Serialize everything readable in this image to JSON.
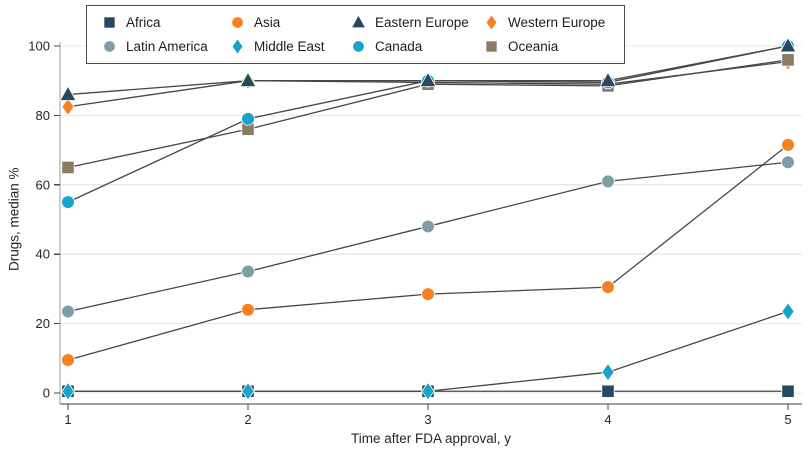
{
  "figure": {
    "title": "",
    "xlabel": "Time after FDA approval, y",
    "ylabel": "Drugs, median %"
  },
  "colors": {
    "dark_slate": "#25495d",
    "orange": "#f5821f",
    "cyan": "#18a3c9",
    "gray_blue": "#7e9da9",
    "taupe": "#8c7b63",
    "line": "#474747",
    "grid": "#e8e8e8",
    "spine": "#9e9e9e",
    "tick": "#4a4a4a",
    "text": "#262626",
    "legend_border": "#4d4d4d",
    "background": "#ffffff"
  },
  "chart_data": {
    "type": "line",
    "x": [
      1,
      2,
      3,
      4,
      5
    ],
    "xticks": [
      "1",
      "2",
      "3",
      "4",
      "5"
    ],
    "yticks": [
      0,
      20,
      40,
      60,
      80,
      100
    ],
    "ylim": [
      0,
      100
    ],
    "xlabel": "Time after FDA approval, y",
    "ylabel": "Drugs, median %",
    "grid": "horizontal",
    "legend_position": "top-boxed",
    "series": [
      {
        "key": "latin_america",
        "name": "Latin America",
        "marker": "circle",
        "color": "#7e9da9",
        "values": [
          23.5,
          35,
          48,
          61,
          66.5
        ]
      },
      {
        "key": "asia",
        "name": "Asia",
        "marker": "circle",
        "color": "#f5821f",
        "values": [
          9.5,
          24,
          28.5,
          30.5,
          71.5
        ]
      },
      {
        "key": "western_europe",
        "name": "Western Europe",
        "marker": "diamond",
        "color": "#f5821f",
        "values": [
          82.5,
          90,
          89.5,
          89,
          95.5
        ]
      },
      {
        "key": "oceania",
        "name": "Oceania",
        "marker": "square",
        "color": "#8c7b63",
        "values": [
          65,
          76,
          89,
          88.5,
          96
        ]
      },
      {
        "key": "canada",
        "name": "Canada",
        "marker": "circle",
        "color": "#18a3c9",
        "values": [
          55,
          79,
          90,
          89.5,
          100
        ]
      },
      {
        "key": "eastern_europe",
        "name": "Eastern Europe",
        "marker": "triangle",
        "color": "#25495d",
        "values": [
          86,
          90,
          90,
          90,
          100
        ]
      },
      {
        "key": "africa",
        "name": "Africa",
        "marker": "square",
        "color": "#25495d",
        "values": [
          0.5,
          0.5,
          0.5,
          0.5,
          0.5
        ]
      },
      {
        "key": "middle_east",
        "name": "Middle East",
        "marker": "diamond",
        "color": "#18a3c9",
        "values": [
          0.5,
          0.5,
          0.5,
          6,
          23.5
        ]
      }
    ],
    "legend_columns": [
      [
        "africa",
        "latin_america"
      ],
      [
        "asia",
        "middle_east"
      ],
      [
        "eastern_europe",
        "canada"
      ],
      [
        "western_europe",
        "oceania"
      ]
    ]
  }
}
